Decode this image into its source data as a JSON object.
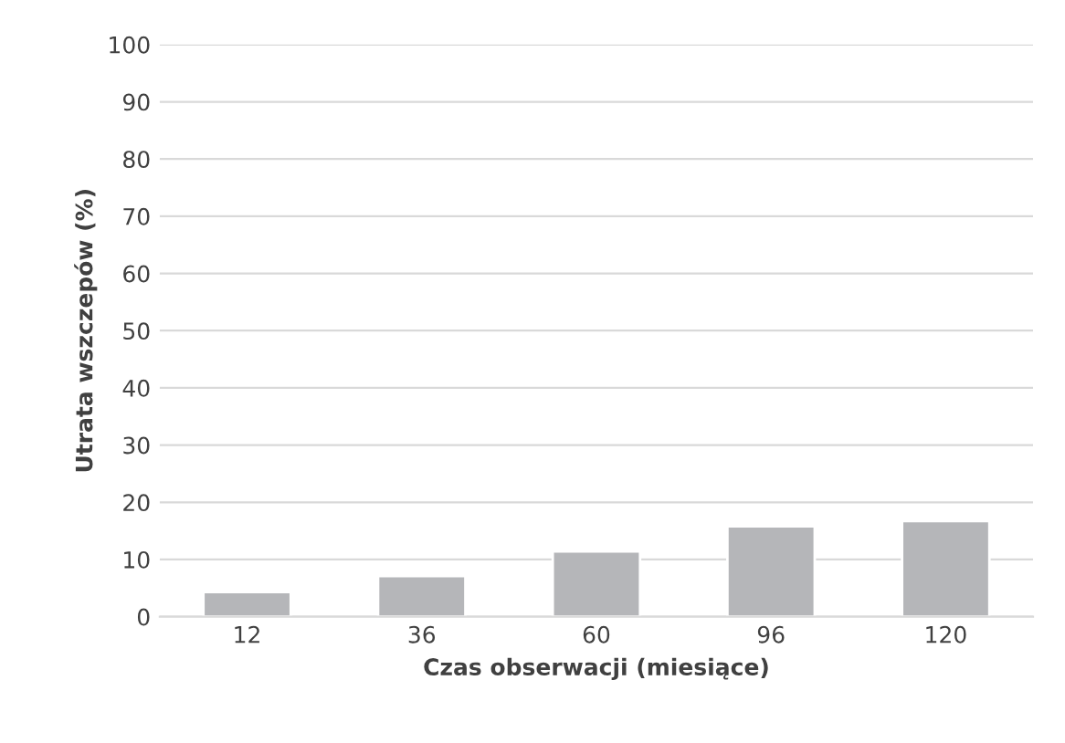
{
  "chart_data": {
    "type": "bar",
    "xlabel": "Czas obserwacji (miesiące)",
    "ylabel": "Utrata wszczepów (%)",
    "categories": [
      "12",
      "36",
      "60",
      "96",
      "120"
    ],
    "values": [
      4.3,
      7.1,
      11.4,
      15.8,
      16.7
    ],
    "color": "#b5b6b9",
    "ylim": [
      0,
      100
    ],
    "yticks": [
      0,
      10,
      20,
      30,
      40,
      50,
      60,
      70,
      80,
      90,
      100
    ],
    "grid": "y"
  }
}
